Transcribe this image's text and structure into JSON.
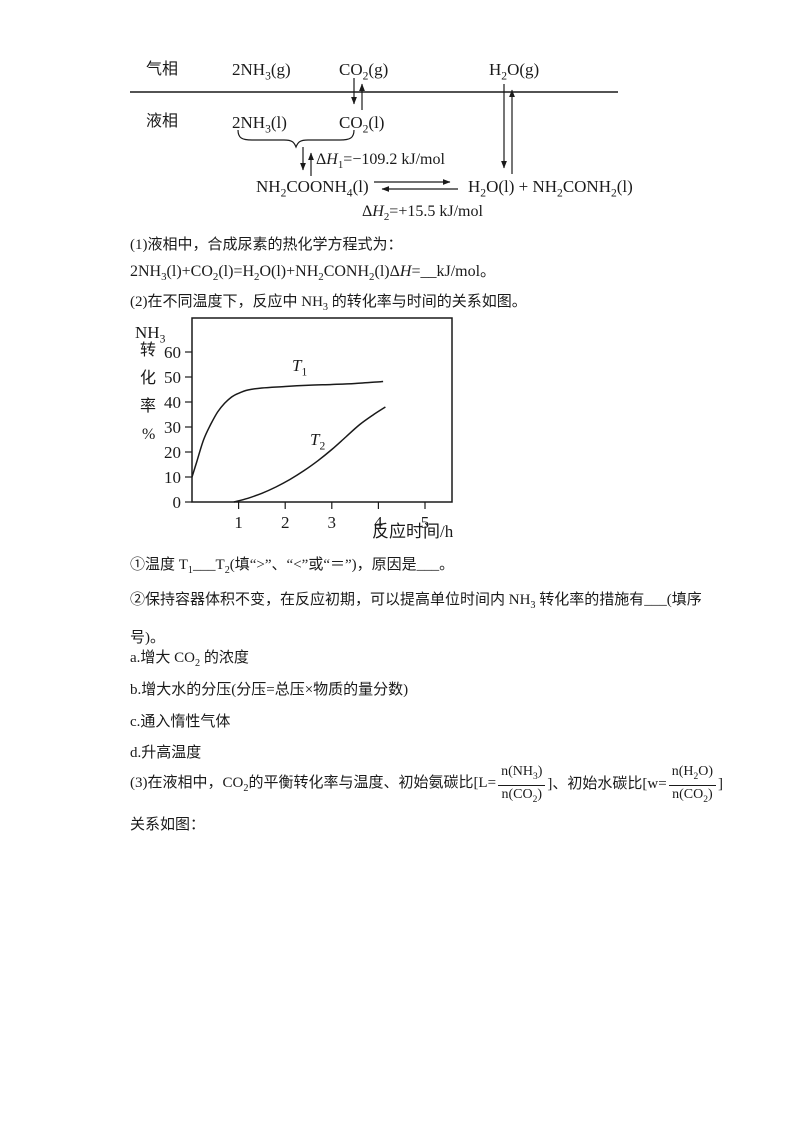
{
  "diagram": {
    "gas_label": "气相",
    "liquid_label": "液相",
    "gas_nh3": "2NH~3~(g)",
    "gas_co2": "CO~2~(g)",
    "gas_h2o": "H~2~O(g)",
    "liq_nh3": "2NH~3~(l)",
    "liq_co2": "CO~2~(l)",
    "dh1": "Δ^H^~1~=−109.2 kJ/mol",
    "carbamate": "NH~2~COONH~4~(l)",
    "products": "H~2~O(l) + NH~2~CONH~2~(l)",
    "dh2": "Δ^H^~2~=+15.5 kJ/mol"
  },
  "questions": {
    "q1_intro": "(1)液相中，合成尿素的热化学方程式为：",
    "q1_equation": "2NH~3~(l)+CO~2~(l)=H~2~O(l)+NH~2~CONH~2~(l)Δ^H^=__kJ/mol。",
    "q2_intro": "(2)在不同温度下，反应中 NH~3~ 的转化率与时间的关系如图。",
    "q2_sub1": "①温度 T~1~___T~2~(填“>”、“<”或“＝”)，原因是___。",
    "q2_sub2": "②保持容器体积不变，在反应初期，可以提高单位时间内 NH~3~ 转化率的措施有___(填序号)。",
    "options": [
      "a.增大 CO~2~ 的浓度",
      "b.增大水的分压(分压=总压×物质的量分数)",
      "c.通入惰性气体",
      "d.升高温度"
    ],
    "q3_prefix": "(3)在液相中，CO~2~的平衡转化率与温度、初始氨碳比[L=",
    "q3_frac1_num": "n(NH~3~)",
    "q3_frac1_den": "n(CO~2~)",
    "q3_mid": "]、初始水碳比[w=",
    "q3_frac2_num": "n(H~2~O)",
    "q3_frac2_den": "n(CO~2~)",
    "q3_suffix": "]",
    "q3_tail": "关系如图："
  },
  "chart_data": {
    "type": "line",
    "title": "",
    "xlabel": "反应时间/h",
    "ylabel": "NH₃转化率%",
    "ylabel_head": "NH~3~",
    "ylabel_stack": [
      "转",
      "化",
      "率",
      "%"
    ],
    "xticks": [
      1,
      2,
      3,
      4,
      5
    ],
    "yticks": [
      0,
      10,
      20,
      30,
      40,
      50,
      60
    ],
    "xlim": [
      0,
      5.58
    ],
    "ylim": [
      0,
      73.6
    ],
    "grid": false,
    "legend_position": "inline-labels",
    "series": [
      {
        "name": "T1",
        "label_rich": "^T^~1~",
        "points": [
          [
            0,
            10
          ],
          [
            0.1,
            16
          ],
          [
            0.25,
            25
          ],
          [
            0.4,
            31
          ],
          [
            0.55,
            36
          ],
          [
            0.7,
            39.5
          ],
          [
            0.85,
            42
          ],
          [
            1.0,
            43.5
          ],
          [
            1.2,
            44.8
          ],
          [
            1.5,
            45.6
          ],
          [
            2.0,
            46.2
          ],
          [
            2.5,
            46.7
          ],
          [
            3.0,
            47.0
          ],
          [
            3.5,
            47.4
          ],
          [
            4.1,
            48.2
          ]
        ]
      },
      {
        "name": "T2",
        "label_rich": "^T^~2~",
        "points": [
          [
            0.9,
            0
          ],
          [
            1.2,
            1.5
          ],
          [
            1.5,
            3.5
          ],
          [
            1.8,
            6
          ],
          [
            2.1,
            9
          ],
          [
            2.4,
            12.5
          ],
          [
            2.7,
            16.5
          ],
          [
            3.0,
            21
          ],
          [
            3.3,
            26
          ],
          [
            3.6,
            31
          ],
          [
            3.9,
            35
          ],
          [
            4.15,
            38
          ]
        ]
      }
    ]
  }
}
